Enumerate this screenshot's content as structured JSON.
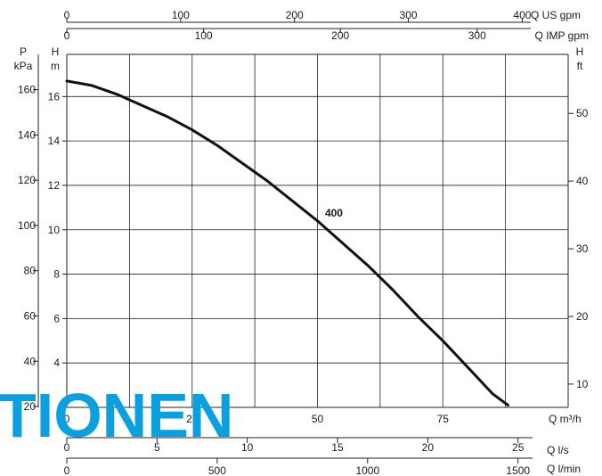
{
  "chart_data": {
    "type": "line",
    "title": "",
    "series": [
      {
        "name": "400",
        "x": [
          0,
          5,
          10,
          15,
          20,
          25,
          30,
          35,
          40,
          45,
          50,
          55,
          60,
          65,
          70,
          75,
          80,
          85,
          88
        ],
        "y": [
          16.7,
          16.5,
          16.1,
          15.6,
          15.1,
          14.5,
          13.8,
          13.0,
          12.2,
          11.3,
          10.4,
          9.4,
          8.4,
          7.3,
          6.1,
          5.0,
          3.8,
          2.6,
          2.1
        ]
      }
    ],
    "axes": {
      "q_m3h": {
        "label": "Q m³/h",
        "ticks": [
          "0",
          "25",
          "50",
          "75"
        ],
        "range": [
          0,
          100
        ]
      },
      "q_ls": {
        "label": "Q l/s",
        "ticks": [
          "0",
          "5",
          "10",
          "15",
          "20",
          "25"
        ]
      },
      "q_lmin": {
        "label": "Q l/min",
        "ticks": [
          "0",
          "500",
          "1000",
          "1500"
        ]
      },
      "q_usgpm": {
        "label": "Q US gpm",
        "ticks": [
          "0",
          "100",
          "200",
          "300",
          "400"
        ]
      },
      "q_impgpm": {
        "label": "Q IMP gpm",
        "ticks": [
          "0",
          "100",
          "200",
          "300"
        ]
      },
      "h_m": {
        "label_top": "H",
        "label_bottom": "m",
        "ticks": [
          "4",
          "6",
          "8",
          "10",
          "12",
          "14",
          "16"
        ],
        "range": [
          2,
          17.9
        ]
      },
      "p_kpa": {
        "label_top": "P",
        "label_bottom": "kPa",
        "ticks": [
          "20",
          "40",
          "60",
          "80",
          "100",
          "120",
          "140",
          "160"
        ]
      },
      "h_ft": {
        "label_top": "H",
        "label_bottom": "ft",
        "ticks": [
          "10",
          "20",
          "30",
          "40",
          "50"
        ]
      }
    },
    "grid": true
  },
  "watermark": {
    "text": "TIONEN",
    "color": "#0aa0e0"
  }
}
